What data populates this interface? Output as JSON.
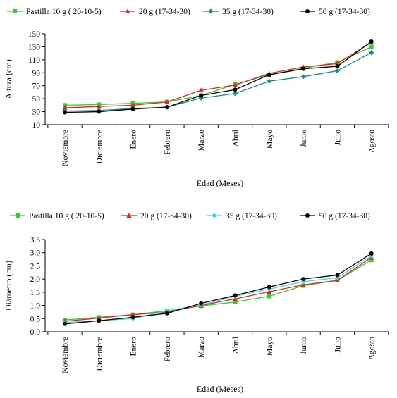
{
  "chart_data": [
    {
      "type": "line",
      "title": "",
      "xlabel": "Edad (Meses)",
      "ylabel": "Altura (cm)",
      "ylim": [
        10,
        150
      ],
      "yticks": [
        "10",
        "30",
        "50",
        "70",
        "90",
        "110",
        "130",
        "150"
      ],
      "categories": [
        "Noviembre",
        "Diciembre",
        "Enero",
        "Febrero",
        "Marzo",
        "Abril",
        "Mayo",
        "Junio",
        "Julio",
        "Agosto"
      ],
      "legend_position": "top",
      "grid": false,
      "series": [
        {
          "name": "Pastilla   10 g ( 20-10-5)",
          "color": "#33cc33",
          "marker": "square",
          "values": [
            40,
            41,
            43,
            45,
            55,
            72,
            87,
            97,
            106,
            130
          ]
        },
        {
          "name": "20 g (17-34-30)",
          "color": "#e8221c",
          "marker": "triangle",
          "values": [
            36,
            38,
            40,
            45,
            63,
            71,
            89,
            99,
            104,
            137
          ]
        },
        {
          "name": "35 g (17-34-30)",
          "color": "#1a8c8c",
          "marker": "diamond",
          "values": [
            31,
            32,
            35,
            37,
            51,
            58,
            77,
            84,
            93,
            121
          ]
        },
        {
          "name": "50 g (17-34-30)",
          "color": "#000000",
          "marker": "circle",
          "values": [
            29,
            30,
            34,
            37,
            55,
            64,
            87,
            96,
            100,
            138
          ]
        }
      ]
    },
    {
      "type": "line",
      "title": "",
      "xlabel": "Edad (Meses)",
      "ylabel": "Diámetro (cm)",
      "ylim": [
        0,
        3.5
      ],
      "yticks": [
        "0.0",
        "0.5",
        "1.0",
        "1.5",
        "2.0",
        "2.5",
        "3.0",
        "3.5"
      ],
      "categories": [
        "Noviembre",
        "Diciembre",
        "Enero",
        "Febrero",
        "Marzo",
        "Abril",
        "Mayo",
        "Junio",
        "Julio",
        "Agosto"
      ],
      "legend_position": "top",
      "grid": false,
      "series": [
        {
          "name": "Pastilla   10 g ( 20-10-5)",
          "color": "#33cc33",
          "marker": "square",
          "values": [
            0.45,
            0.55,
            0.65,
            0.8,
            0.98,
            1.13,
            1.35,
            1.75,
            1.95,
            2.72
          ]
        },
        {
          "name": "20 g (17-34-30)",
          "color": "#e8221c",
          "marker": "triangle",
          "values": [
            0.4,
            0.52,
            0.65,
            0.75,
            1.0,
            1.25,
            1.52,
            1.78,
            1.95,
            2.82
          ]
        },
        {
          "name": "35 g (17-34-30)",
          "color": "#33dddd",
          "marker": "diamond",
          "values": [
            0.35,
            0.42,
            0.5,
            0.8,
            1.02,
            1.35,
            1.62,
            1.9,
            2.05,
            2.88
          ]
        },
        {
          "name": "50 g (17-34-30)",
          "color": "#000000",
          "marker": "circle",
          "values": [
            0.3,
            0.42,
            0.55,
            0.7,
            1.08,
            1.38,
            1.7,
            2.0,
            2.15,
            2.97
          ]
        }
      ]
    }
  ]
}
